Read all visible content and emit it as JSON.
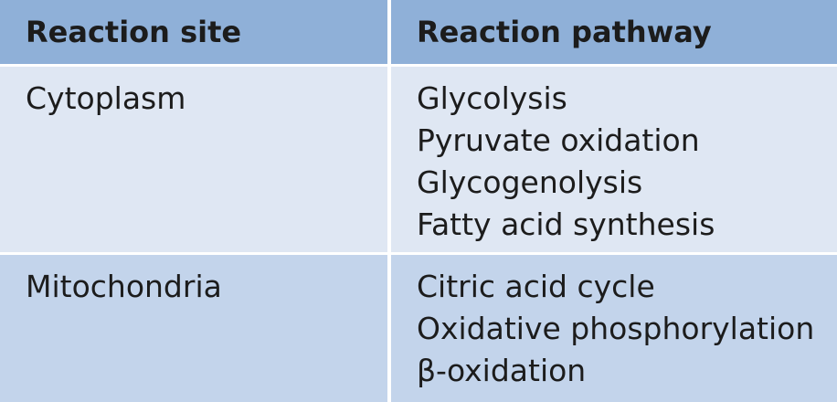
{
  "table": {
    "headers": [
      "Reaction site",
      "Reaction pathway"
    ],
    "rows": [
      {
        "site": "Cytoplasm",
        "pathways": [
          "Glycolysis",
          "Pyruvate oxidation",
          "Glycogenolysis",
          "Fatty acid synthesis"
        ]
      },
      {
        "site": "Mitochondria",
        "pathways": [
          "Citric acid cycle",
          "Oxidative phosphorylation",
          "β-oxidation"
        ]
      }
    ],
    "colors": {
      "header_bg": "#8fb0d8",
      "row1_bg": "#dfe7f3",
      "row2_bg": "#c3d4eb",
      "text": "#1c1c1c"
    }
  }
}
